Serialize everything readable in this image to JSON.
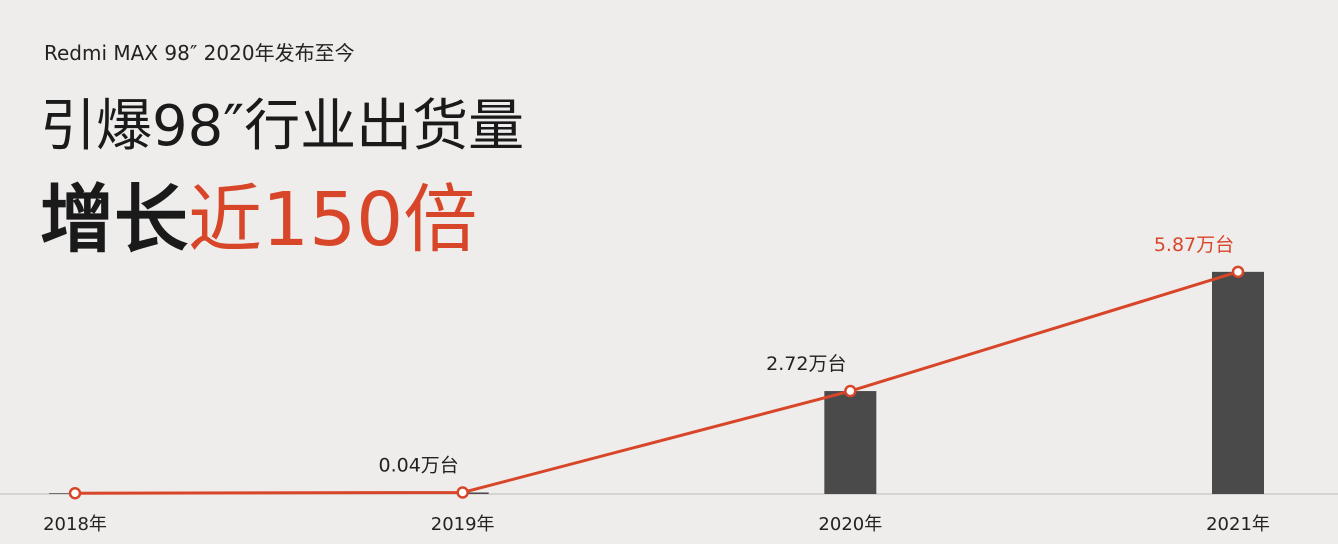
{
  "chart_data": {
    "type": "bar-line",
    "subtitle": "Redmi MAX 98″ 2020年发布至今",
    "title": {
      "line1": "引爆98″行业出货量",
      "line2_plain": "增长",
      "line2_highlight": "近150倍"
    },
    "categories": [
      "2018年",
      "2019年",
      "2020年",
      "2021年"
    ],
    "values": [
      0.02,
      0.04,
      2.72,
      5.87
    ],
    "value_labels": [
      null,
      "0.04万台",
      "2.72万台",
      "5.87万台"
    ],
    "bar_color": "#4a4a4a",
    "line_color": "#d8462a",
    "ylim": [
      0,
      6.5
    ]
  }
}
